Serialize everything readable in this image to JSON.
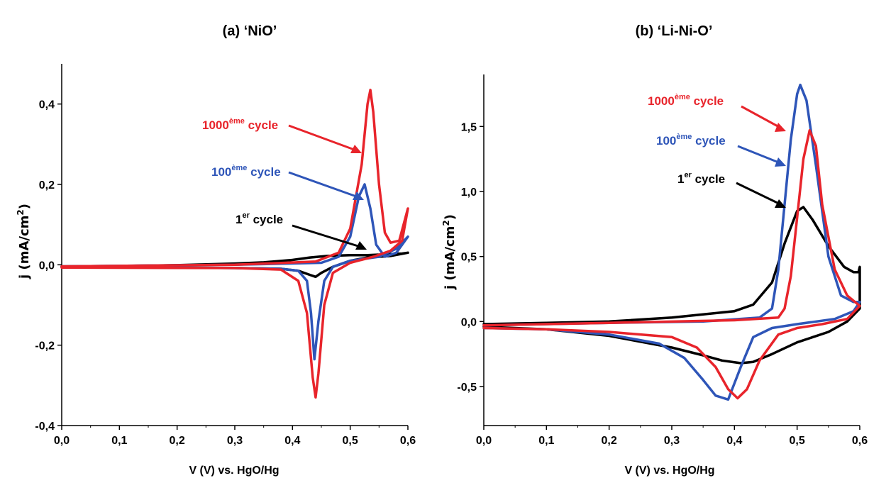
{
  "chart_data": [
    {
      "type": "line",
      "title": "(a) ‘NiO’",
      "xlabel": "V (V) vs. HgO/Hg",
      "ylabel": "j (mA/cm2)",
      "ylabel_main": "j (mA/cm",
      "ylabel_sup": "2",
      "ylabel_end": ")",
      "xlim": [
        0.0,
        0.6
      ],
      "ylim": [
        -0.4,
        0.5
      ],
      "xticks": [
        "0,0",
        "0,1",
        "0,2",
        "0,3",
        "0,4",
        "0,5",
        "0,6"
      ],
      "yticks": [
        "-0,4",
        "-0,2",
        "0,0",
        "0,2",
        "0,4"
      ],
      "grid": false,
      "series": [
        {
          "name": "1er cycle",
          "color": "#000000",
          "label_main": "1",
          "label_sup": "er",
          "label_end": " cycle",
          "upper": [
            [
              0.0,
              -0.004
            ],
            [
              0.1,
              -0.003
            ],
            [
              0.2,
              -0.001
            ],
            [
              0.3,
              0.003
            ],
            [
              0.35,
              0.006
            ],
            [
              0.4,
              0.012
            ],
            [
              0.43,
              0.018
            ],
            [
              0.46,
              0.022
            ],
            [
              0.5,
              0.024
            ],
            [
              0.53,
              0.024
            ],
            [
              0.56,
              0.026
            ],
            [
              0.59,
              0.028
            ],
            [
              0.6,
              0.03
            ]
          ],
          "lower": [
            [
              0.6,
              0.03
            ],
            [
              0.57,
              0.022
            ],
            [
              0.53,
              0.018
            ],
            [
              0.5,
              0.01
            ],
            [
              0.47,
              -0.005
            ],
            [
              0.45,
              -0.02
            ],
            [
              0.44,
              -0.03
            ],
            [
              0.43,
              -0.025
            ],
            [
              0.41,
              -0.015
            ],
            [
              0.38,
              -0.01
            ],
            [
              0.3,
              -0.008
            ],
            [
              0.2,
              -0.007
            ],
            [
              0.1,
              -0.006
            ],
            [
              0.0,
              -0.005
            ]
          ]
        },
        {
          "name": "100ème cycle",
          "color": "#2E55B8",
          "label_main": "100",
          "label_sup": "ème",
          "label_end": " cycle",
          "upper": [
            [
              0.0,
              -0.004
            ],
            [
              0.3,
              0.0
            ],
            [
              0.45,
              0.005
            ],
            [
              0.48,
              0.02
            ],
            [
              0.5,
              0.07
            ],
            [
              0.515,
              0.17
            ],
            [
              0.525,
              0.2
            ],
            [
              0.535,
              0.14
            ],
            [
              0.545,
              0.05
            ],
            [
              0.56,
              0.02
            ],
            [
              0.58,
              0.03
            ],
            [
              0.6,
              0.07
            ]
          ],
          "lower": [
            [
              0.6,
              0.07
            ],
            [
              0.58,
              0.04
            ],
            [
              0.55,
              0.02
            ],
            [
              0.5,
              0.01
            ],
            [
              0.47,
              -0.005
            ],
            [
              0.455,
              -0.04
            ],
            [
              0.445,
              -0.14
            ],
            [
              0.438,
              -0.235
            ],
            [
              0.432,
              -0.12
            ],
            [
              0.425,
              -0.04
            ],
            [
              0.41,
              -0.015
            ],
            [
              0.38,
              -0.01
            ],
            [
              0.3,
              -0.008
            ],
            [
              0.0,
              -0.006
            ]
          ]
        },
        {
          "name": "1000ème cycle",
          "color": "#E8242B",
          "label_main": "1000",
          "label_sup": "ème",
          "label_end": " cycle",
          "upper": [
            [
              0.0,
              -0.004
            ],
            [
              0.3,
              0.0
            ],
            [
              0.44,
              0.008
            ],
            [
              0.48,
              0.03
            ],
            [
              0.5,
              0.09
            ],
            [
              0.52,
              0.25
            ],
            [
              0.53,
              0.4
            ],
            [
              0.535,
              0.435
            ],
            [
              0.54,
              0.38
            ],
            [
              0.55,
              0.2
            ],
            [
              0.56,
              0.08
            ],
            [
              0.57,
              0.055
            ],
            [
              0.585,
              0.06
            ],
            [
              0.6,
              0.14
            ]
          ],
          "lower": [
            [
              0.6,
              0.14
            ],
            [
              0.59,
              0.06
            ],
            [
              0.57,
              0.035
            ],
            [
              0.54,
              0.02
            ],
            [
              0.5,
              0.005
            ],
            [
              0.47,
              -0.02
            ],
            [
              0.455,
              -0.1
            ],
            [
              0.445,
              -0.27
            ],
            [
              0.44,
              -0.33
            ],
            [
              0.435,
              -0.28
            ],
            [
              0.425,
              -0.12
            ],
            [
              0.41,
              -0.04
            ],
            [
              0.38,
              -0.012
            ],
            [
              0.3,
              -0.008
            ],
            [
              0.0,
              -0.007
            ]
          ]
        }
      ]
    },
    {
      "type": "line",
      "title": "(b) ‘Li-Ni-O’",
      "xlabel": "V (V) vs. HgO/Hg",
      "ylabel": "j (mA/cm2)",
      "ylabel_main": "j (mA/cm",
      "ylabel_sup": "2",
      "ylabel_end": ")",
      "xlim": [
        0.0,
        0.6
      ],
      "ylim": [
        -0.8,
        1.9
      ],
      "xticks": [
        "0,0",
        "0,1",
        "0,2",
        "0,3",
        "0,4",
        "0,5",
        "0,6"
      ],
      "yticks": [
        "-0,5",
        "0,0",
        "0,5",
        "1,0",
        "1,5"
      ],
      "grid": false,
      "series": [
        {
          "name": "1er cycle",
          "color": "#000000",
          "label_main": "1",
          "label_sup": "er",
          "label_end": " cycle",
          "upper": [
            [
              0.0,
              -0.02
            ],
            [
              0.1,
              -0.01
            ],
            [
              0.2,
              0.0
            ],
            [
              0.3,
              0.03
            ],
            [
              0.4,
              0.08
            ],
            [
              0.43,
              0.13
            ],
            [
              0.46,
              0.3
            ],
            [
              0.48,
              0.6
            ],
            [
              0.5,
              0.85
            ],
            [
              0.51,
              0.88
            ],
            [
              0.525,
              0.78
            ],
            [
              0.55,
              0.58
            ],
            [
              0.575,
              0.42
            ],
            [
              0.59,
              0.38
            ],
            [
              0.598,
              0.38
            ],
            [
              0.6,
              0.42
            ]
          ],
          "lower": [
            [
              0.6,
              0.42
            ],
            [
              0.6,
              0.1
            ],
            [
              0.58,
              0.0
            ],
            [
              0.55,
              -0.08
            ],
            [
              0.5,
              -0.16
            ],
            [
              0.46,
              -0.25
            ],
            [
              0.43,
              -0.31
            ],
            [
              0.41,
              -0.32
            ],
            [
              0.38,
              -0.3
            ],
            [
              0.35,
              -0.26
            ],
            [
              0.3,
              -0.2
            ],
            [
              0.2,
              -0.11
            ],
            [
              0.1,
              -0.06
            ],
            [
              0.0,
              -0.04
            ]
          ]
        },
        {
          "name": "100ème cycle",
          "color": "#2E55B8",
          "label_main": "100",
          "label_sup": "ème",
          "label_end": " cycle",
          "upper": [
            [
              0.0,
              -0.03
            ],
            [
              0.2,
              -0.01
            ],
            [
              0.35,
              0.0
            ],
            [
              0.44,
              0.03
            ],
            [
              0.46,
              0.1
            ],
            [
              0.47,
              0.4
            ],
            [
              0.48,
              0.9
            ],
            [
              0.49,
              1.4
            ],
            [
              0.5,
              1.75
            ],
            [
              0.505,
              1.82
            ],
            [
              0.515,
              1.7
            ],
            [
              0.53,
              1.2
            ],
            [
              0.55,
              0.5
            ],
            [
              0.57,
              0.2
            ],
            [
              0.59,
              0.15
            ],
            [
              0.6,
              0.15
            ]
          ],
          "lower": [
            [
              0.6,
              0.15
            ],
            [
              0.59,
              0.08
            ],
            [
              0.56,
              0.02
            ],
            [
              0.5,
              -0.02
            ],
            [
              0.46,
              -0.05
            ],
            [
              0.43,
              -0.12
            ],
            [
              0.41,
              -0.35
            ],
            [
              0.39,
              -0.6
            ],
            [
              0.37,
              -0.57
            ],
            [
              0.35,
              -0.45
            ],
            [
              0.32,
              -0.28
            ],
            [
              0.28,
              -0.17
            ],
            [
              0.2,
              -0.1
            ],
            [
              0.1,
              -0.06
            ],
            [
              0.0,
              -0.05
            ]
          ]
        },
        {
          "name": "1000ème cycle",
          "color": "#E8242B",
          "label_main": "1000",
          "label_sup": "ème",
          "label_end": " cycle",
          "upper": [
            [
              0.0,
              -0.03
            ],
            [
              0.2,
              -0.01
            ],
            [
              0.4,
              0.01
            ],
            [
              0.47,
              0.03
            ],
            [
              0.48,
              0.1
            ],
            [
              0.49,
              0.35
            ],
            [
              0.5,
              0.8
            ],
            [
              0.51,
              1.25
            ],
            [
              0.52,
              1.47
            ],
            [
              0.53,
              1.35
            ],
            [
              0.54,
              0.9
            ],
            [
              0.56,
              0.4
            ],
            [
              0.58,
              0.2
            ],
            [
              0.6,
              0.12
            ]
          ],
          "lower": [
            [
              0.6,
              0.12
            ],
            [
              0.58,
              0.02
            ],
            [
              0.54,
              -0.02
            ],
            [
              0.5,
              -0.05
            ],
            [
              0.47,
              -0.1
            ],
            [
              0.44,
              -0.3
            ],
            [
              0.42,
              -0.52
            ],
            [
              0.405,
              -0.59
            ],
            [
              0.39,
              -0.52
            ],
            [
              0.37,
              -0.35
            ],
            [
              0.34,
              -0.2
            ],
            [
              0.3,
              -0.12
            ],
            [
              0.2,
              -0.08
            ],
            [
              0.1,
              -0.06
            ],
            [
              0.0,
              -0.05
            ]
          ]
        }
      ]
    }
  ]
}
